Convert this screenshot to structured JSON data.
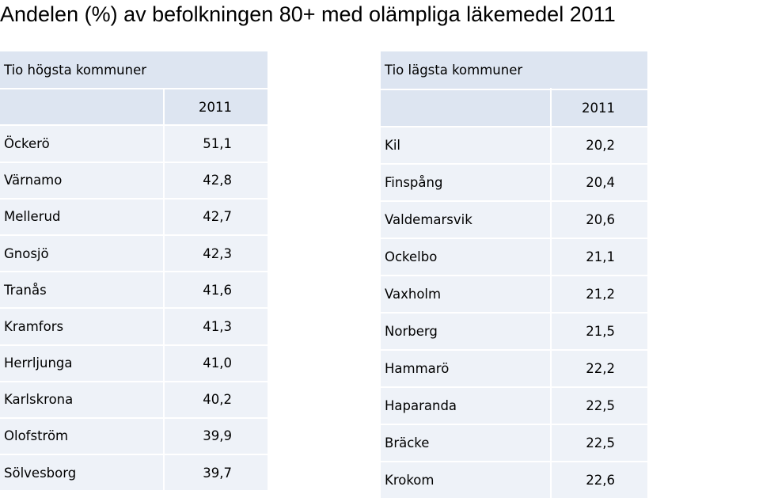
{
  "title": "Andelen (%) av befolkningen 80+ med olämpliga läkemedel 2011",
  "top_table": {
    "heading": "Tio högsta kommuner",
    "year": "2011",
    "rows": [
      {
        "name": "Öckerö",
        "value": "51,1"
      },
      {
        "name": "Värnamo",
        "value": "42,8"
      },
      {
        "name": "Mellerud",
        "value": "42,7"
      },
      {
        "name": "Gnosjö",
        "value": "42,3"
      },
      {
        "name": "Tranås",
        "value": "41,6"
      },
      {
        "name": "Kramfors",
        "value": "41,3"
      },
      {
        "name": "Herrljunga",
        "value": "41,0"
      },
      {
        "name": "Karlskrona",
        "value": "40,2"
      },
      {
        "name": "Olofström",
        "value": "39,9"
      },
      {
        "name": "Sölvesborg",
        "value": "39,7"
      }
    ]
  },
  "bottom_table": {
    "heading": "Tio lägsta kommuner",
    "year": "2011",
    "rows": [
      {
        "name": "Kil",
        "value": "20,2"
      },
      {
        "name": "Finspång",
        "value": "20,4"
      },
      {
        "name": "Valdemarsvik",
        "value": "20,6"
      },
      {
        "name": "Ockelbo",
        "value": "21,1"
      },
      {
        "name": "Vaxholm",
        "value": "21,2"
      },
      {
        "name": "Norberg",
        "value": "21,5"
      },
      {
        "name": "Hammarö",
        "value": "22,2"
      },
      {
        "name": "Haparanda",
        "value": "22,5"
      },
      {
        "name": "Bräcke",
        "value": "22,5"
      },
      {
        "name": "Krokom",
        "value": "22,6"
      }
    ]
  },
  "colors": {
    "header_fill": "#dde5f1",
    "row_fill": "#eef2f8",
    "grid_line": "#ffffff"
  }
}
